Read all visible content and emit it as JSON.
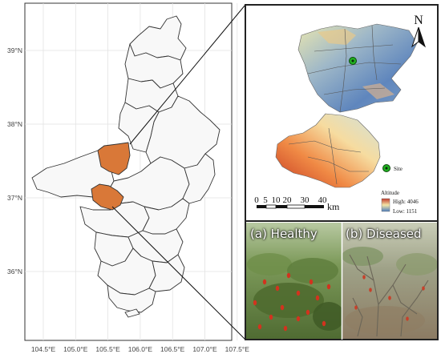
{
  "left_map": {
    "lon_ticks": [
      "104.5°E",
      "105.0°E",
      "105.5°E",
      "106.0°E",
      "106.5°E",
      "107.0°E",
      "107.5°E"
    ],
    "lat_ticks": [
      "39°N",
      "38°N",
      "37°N",
      "36°N"
    ],
    "grid": true,
    "study_area_color": "#d97838",
    "region_fill": "#f8f8f8"
  },
  "inset_map": {
    "north_label": "N",
    "scale_numbers": [
      "0",
      "5",
      "10",
      "20",
      "30",
      "40"
    ],
    "scale_unit": "km",
    "legend_title": "Altitude",
    "legend_high": "High: 4046",
    "legend_low": "Low: 1151",
    "site_label": "Site",
    "site_color": "#22b022",
    "ramp_colors": [
      "#c0392b",
      "#f4e6a6",
      "#4f7fbd"
    ]
  },
  "photos": {
    "healthy_label": "(a) Healthy",
    "diseased_label": "(b) Diseased"
  }
}
